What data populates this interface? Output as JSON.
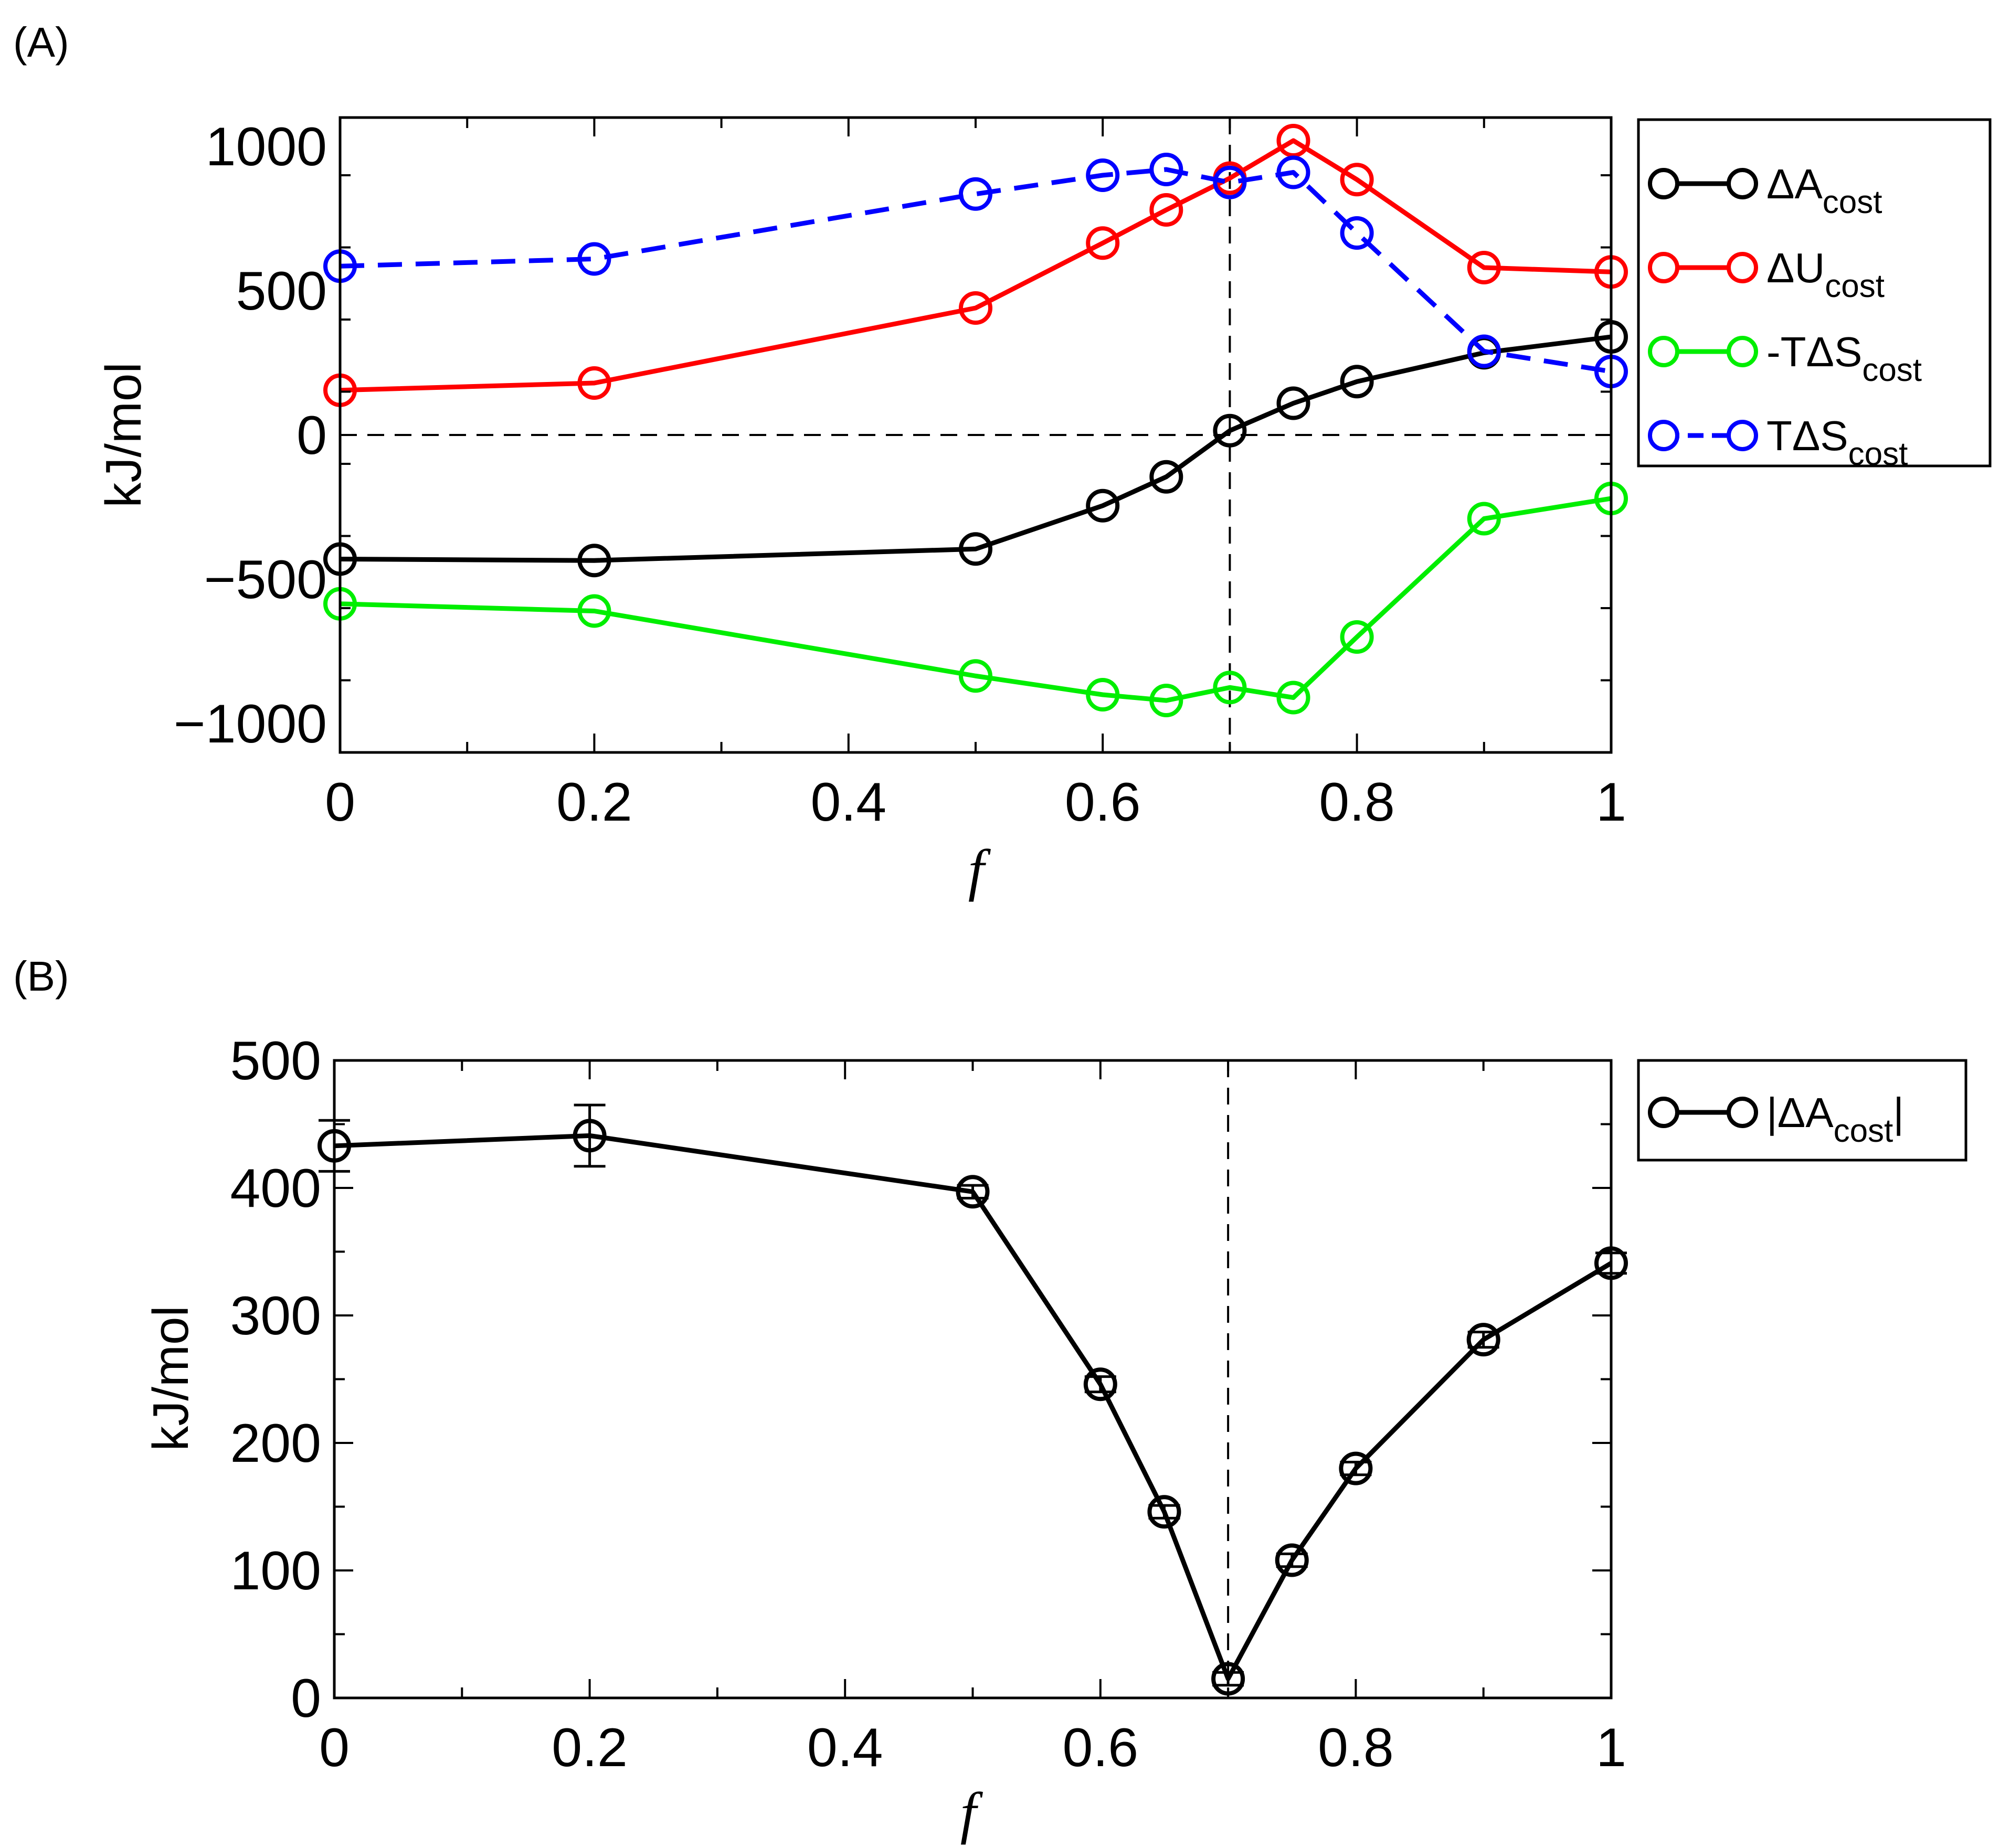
{
  "chart_data": [
    {
      "panel": "(A)",
      "type": "line",
      "xlabel": "f",
      "ylabel": "kJ/mol",
      "xlim": [
        0,
        1
      ],
      "ylim": [
        -1100,
        1100
      ],
      "xticks": [
        "0",
        "0.2",
        "0.4",
        "0.6",
        "0.8",
        "1"
      ],
      "yticks": [
        "−1000",
        "−500",
        "0",
        "500",
        "1000"
      ],
      "x": [
        0,
        0.2,
        0.5,
        0.6,
        0.65,
        0.7,
        0.75,
        0.8,
        0.9,
        1.0
      ],
      "reference_lines": {
        "vertical_x": 0.7,
        "horizontal_y": 0
      },
      "legend_position": "outside-right-top",
      "series": [
        {
          "name": "ΔA",
          "subscript": "cost",
          "color": "#000000",
          "dash": "solid",
          "values": [
            -430,
            -435,
            -395,
            -245,
            -145,
            15,
            110,
            185,
            285,
            340
          ]
        },
        {
          "name": "ΔU",
          "subscript": "cost",
          "color": "#ff0000",
          "dash": "solid",
          "values": [
            155,
            180,
            440,
            665,
            780,
            890,
            1020,
            885,
            580,
            565
          ]
        },
        {
          "name": "-TΔS",
          "subscript": "cost",
          "color": "#00ee00",
          "dash": "solid",
          "values": [
            -585,
            -610,
            -835,
            -900,
            -920,
            -875,
            -910,
            -700,
            -290,
            -220
          ]
        },
        {
          "name": "TΔS",
          "subscript": "cost",
          "color": "#0000ff",
          "dash": "dashed",
          "values": [
            585,
            610,
            835,
            900,
            920,
            875,
            910,
            700,
            290,
            220
          ]
        }
      ]
    },
    {
      "panel": "(B)",
      "type": "line",
      "xlabel": "f",
      "ylabel": "kJ/mol",
      "xlim": [
        0,
        1
      ],
      "ylim": [
        0,
        500
      ],
      "xticks": [
        "0",
        "0.2",
        "0.4",
        "0.6",
        "0.8",
        "1"
      ],
      "yticks": [
        "0",
        "100",
        "200",
        "300",
        "400",
        "500"
      ],
      "x": [
        0,
        0.2,
        0.5,
        0.6,
        0.65,
        0.7,
        0.75,
        0.8,
        0.9,
        1.0
      ],
      "reference_lines": {
        "vertical_x": 0.7
      },
      "legend_position": "outside-right-top",
      "series": [
        {
          "name": "|ΔA",
          "subscript": "cost",
          "suffix": "|",
          "color": "#000000",
          "dash": "solid",
          "values": [
            433,
            441,
            397,
            246,
            146,
            15,
            108,
            180,
            281,
            341
          ],
          "errors": [
            20,
            24,
            5,
            6,
            5,
            5,
            5,
            5,
            6,
            8
          ]
        }
      ]
    }
  ]
}
